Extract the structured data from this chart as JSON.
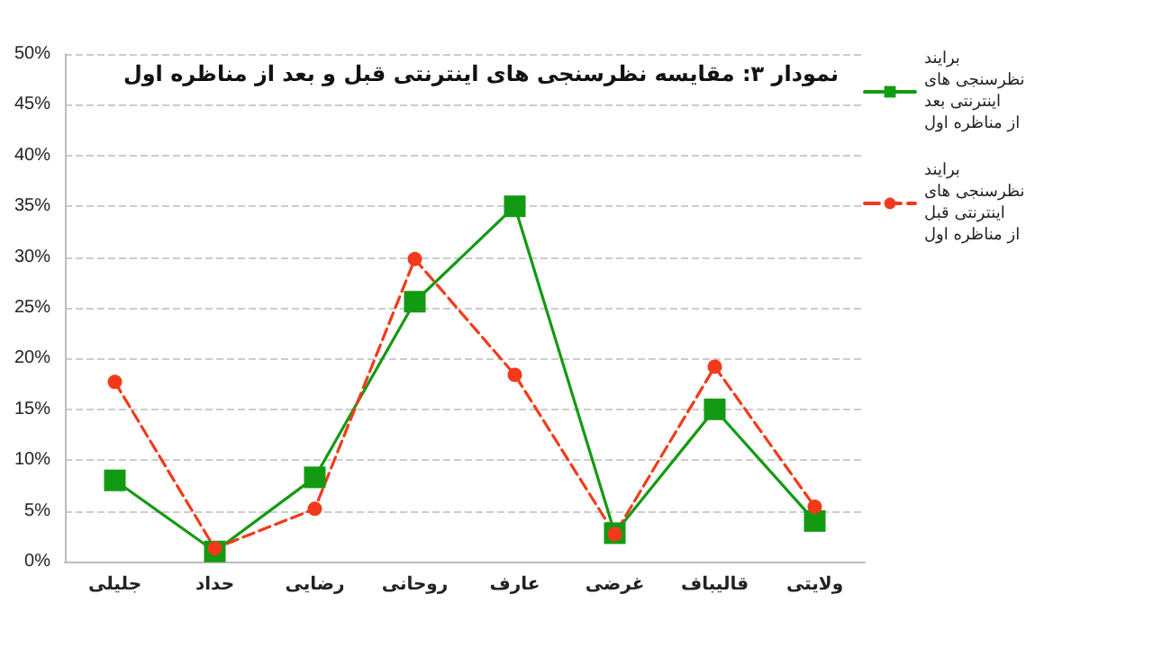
{
  "chart_data": {
    "type": "line",
    "title": "نمودار ۳: مقایسه نظرسنجی های اینترنتی قبل و بعد از مناظره اول",
    "categories": [
      "جلیلی",
      "حداد",
      "رضایی",
      "روحانی",
      "عارف",
      "غرضی",
      "قالیباف",
      "ولایتی"
    ],
    "series": [
      {
        "name": "برایند نظرسنجی های اینترنتی بعد از مناظره اول",
        "color": "#139a13",
        "marker": "square",
        "line_style": "solid",
        "values": [
          8,
          1,
          8.3,
          25.6,
          35,
          2.8,
          15,
          4
        ]
      },
      {
        "name": "برایند نظرسنجی های اینترنتی قبل از مناظره اول",
        "color": "#f23a1a",
        "marker": "circle",
        "line_style": "dashed",
        "values": [
          17.7,
          1.3,
          5.2,
          29.8,
          18.4,
          2.7,
          19.2,
          5.4
        ]
      }
    ],
    "ylim": [
      0,
      50
    ],
    "yticks": [
      {
        "value": 0,
        "label": "0%"
      },
      {
        "value": 5,
        "label": "5%"
      },
      {
        "value": 10,
        "label": "10%"
      },
      {
        "value": 15,
        "label": "15%"
      },
      {
        "value": 20,
        "label": "20%"
      },
      {
        "value": 25,
        "label": "25%"
      },
      {
        "value": 30,
        "label": "30%"
      },
      {
        "value": 35,
        "label": "35%"
      },
      {
        "value": 40,
        "label": "40%"
      },
      {
        "value": 45,
        "label": "45%"
      },
      {
        "value": 50,
        "label": "50%"
      }
    ],
    "grid": "y",
    "legend": "top right"
  }
}
